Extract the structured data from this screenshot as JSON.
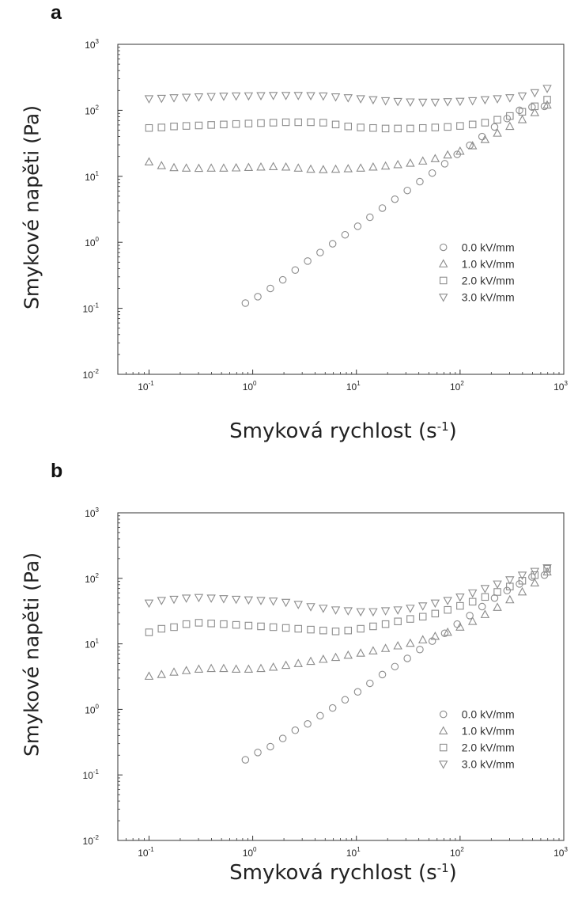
{
  "chart_data": [
    {
      "panel": "a",
      "type": "scatter",
      "x_scale": "log",
      "y_scale": "log",
      "xlim": [
        0.05,
        1000
      ],
      "ylim": [
        0.01,
        1000
      ],
      "x_ticks": [
        0.1,
        1,
        10,
        100,
        1000
      ],
      "y_ticks": [
        0.01,
        0.1,
        1,
        10,
        100,
        1000
      ],
      "ylabel": "Smykové napěti (Pa)",
      "xlabel_main": "Smyková rychlost (s",
      "xlabel_sup": "-1",
      "xlabel_end": ")",
      "legend_position": "lower-right",
      "marker_color": "#8c8c8c",
      "series": [
        {
          "name": "0.0 kV/mm",
          "marker": "circle",
          "x": [
            0.85,
            1.12,
            1.48,
            1.95,
            2.57,
            3.39,
            4.47,
            5.9,
            7.78,
            10.3,
            13.5,
            17.8,
            23.5,
            31.0,
            40.9,
            53.9,
            71.1,
            93.8,
            124,
            163,
            215,
            284,
            374,
            494,
            651
          ],
          "y": [
            0.12,
            0.15,
            0.2,
            0.27,
            0.38,
            0.52,
            0.7,
            0.95,
            1.3,
            1.75,
            2.4,
            3.3,
            4.5,
            6.1,
            8.3,
            11.2,
            15.5,
            21.5,
            29.5,
            40,
            56,
            75,
            100,
            112,
            115
          ]
        },
        {
          "name": "1.0 kV/mm",
          "marker": "triangle-up",
          "x": [
            0.1,
            0.132,
            0.174,
            0.229,
            0.302,
            0.398,
            0.525,
            0.692,
            0.912,
            1.2,
            1.58,
            2.09,
            2.75,
            3.63,
            4.79,
            6.31,
            8.32,
            11.0,
            14.5,
            19.1,
            25.1,
            33.1,
            43.7,
            57.5,
            75.9,
            100,
            132,
            174,
            229,
            302,
            398,
            525,
            692
          ],
          "y": [
            16.5,
            14.5,
            13.5,
            13.3,
            13.2,
            13.3,
            13.3,
            13.4,
            13.6,
            13.8,
            14,
            13.8,
            13.3,
            12.8,
            12.6,
            12.8,
            13,
            13.3,
            13.8,
            14.3,
            15,
            15.8,
            17,
            18.5,
            21,
            24,
            29,
            36,
            45,
            57,
            72,
            92,
            120
          ]
        },
        {
          "name": "2.0 kV/mm",
          "marker": "square",
          "x": [
            0.1,
            0.132,
            0.174,
            0.229,
            0.302,
            0.398,
            0.525,
            0.692,
            0.912,
            1.2,
            1.58,
            2.09,
            2.75,
            3.63,
            4.79,
            6.31,
            8.32,
            11.0,
            14.5,
            19.1,
            25.1,
            33.1,
            43.7,
            57.5,
            75.9,
            100,
            132,
            174,
            229,
            302,
            398,
            525,
            692
          ],
          "y": [
            54,
            55,
            57,
            58,
            59,
            60,
            61,
            62,
            63,
            64,
            65,
            66,
            66,
            66,
            65,
            61,
            57,
            55,
            54,
            53,
            53,
            53,
            54,
            55,
            56,
            58,
            61,
            65,
            72,
            82,
            95,
            115,
            145
          ]
        },
        {
          "name": "3.0 kV/mm",
          "marker": "triangle-down",
          "x": [
            0.1,
            0.132,
            0.174,
            0.229,
            0.302,
            0.398,
            0.525,
            0.692,
            0.912,
            1.2,
            1.58,
            2.09,
            2.75,
            3.63,
            4.79,
            6.31,
            8.32,
            11.0,
            14.5,
            19.1,
            25.1,
            33.1,
            43.7,
            57.5,
            75.9,
            100,
            132,
            174,
            229,
            302,
            398,
            525,
            692
          ],
          "y": [
            150,
            152,
            155,
            158,
            160,
            162,
            164,
            165,
            166,
            167,
            168,
            168,
            168,
            167,
            165,
            160,
            155,
            150,
            145,
            140,
            136,
            134,
            133,
            133,
            135,
            137,
            140,
            145,
            150,
            155,
            165,
            185,
            215
          ]
        }
      ]
    },
    {
      "panel": "b",
      "type": "scatter",
      "x_scale": "log",
      "y_scale": "log",
      "xlim": [
        0.05,
        1000
      ],
      "ylim": [
        0.01,
        1000
      ],
      "x_ticks": [
        0.1,
        1,
        10,
        100,
        1000
      ],
      "y_ticks": [
        0.01,
        0.1,
        1,
        10,
        100,
        1000
      ],
      "ylabel": "Smykové napěti (Pa)",
      "xlabel_main": "Smyková rychlost (s",
      "xlabel_sup": "-1",
      "xlabel_end": ")",
      "legend_position": "lower-right",
      "marker_color": "#8c8c8c",
      "series": [
        {
          "name": "0.0 kV/mm",
          "marker": "circle",
          "x": [
            0.85,
            1.12,
            1.48,
            1.95,
            2.57,
            3.39,
            4.47,
            5.9,
            7.78,
            10.3,
            13.5,
            17.8,
            23.5,
            31.0,
            40.9,
            53.9,
            71.1,
            93.8,
            124,
            163,
            215,
            284,
            374,
            494,
            651
          ],
          "y": [
            0.17,
            0.22,
            0.27,
            0.36,
            0.48,
            0.6,
            0.8,
            1.05,
            1.4,
            1.85,
            2.5,
            3.4,
            4.5,
            6,
            8.2,
            11,
            14.5,
            20,
            27,
            37,
            50,
            65,
            82,
            105,
            112
          ]
        },
        {
          "name": "1.0 kV/mm",
          "marker": "triangle-up",
          "x": [
            0.1,
            0.132,
            0.174,
            0.229,
            0.302,
            0.398,
            0.525,
            0.692,
            0.912,
            1.2,
            1.58,
            2.09,
            2.75,
            3.63,
            4.79,
            6.31,
            8.32,
            11.0,
            14.5,
            19.1,
            25.1,
            33.1,
            43.7,
            57.5,
            75.9,
            100,
            132,
            174,
            229,
            302,
            398,
            525,
            692
          ],
          "y": [
            3.2,
            3.4,
            3.7,
            3.9,
            4.1,
            4.2,
            4.2,
            4.1,
            4.1,
            4.2,
            4.4,
            4.7,
            5,
            5.4,
            5.8,
            6.2,
            6.7,
            7.2,
            7.8,
            8.5,
            9.3,
            10.2,
            11.5,
            13,
            15,
            18,
            22,
            28,
            36,
            47,
            62,
            85,
            125
          ]
        },
        {
          "name": "2.0 kV/mm",
          "marker": "square",
          "x": [
            0.1,
            0.132,
            0.174,
            0.229,
            0.302,
            0.398,
            0.525,
            0.692,
            0.912,
            1.2,
            1.58,
            2.09,
            2.75,
            3.63,
            4.79,
            6.31,
            8.32,
            11.0,
            14.5,
            19.1,
            25.1,
            33.1,
            43.7,
            57.5,
            75.9,
            100,
            132,
            174,
            229,
            302,
            398,
            525,
            692
          ],
          "y": [
            15,
            17,
            18,
            20,
            21,
            20.5,
            20,
            19.5,
            19,
            18.5,
            18,
            17.5,
            17,
            16.5,
            16,
            15.5,
            16,
            17,
            18.5,
            20,
            22,
            24,
            26,
            29,
            33,
            38,
            44,
            52,
            62,
            75,
            92,
            112,
            140
          ]
        },
        {
          "name": "3.0 kV/mm",
          "marker": "triangle-down",
          "x": [
            0.1,
            0.132,
            0.174,
            0.229,
            0.302,
            0.398,
            0.525,
            0.692,
            0.912,
            1.2,
            1.58,
            2.09,
            2.75,
            3.63,
            4.79,
            6.31,
            8.32,
            11.0,
            14.5,
            19.1,
            25.1,
            33.1,
            43.7,
            57.5,
            75.9,
            100,
            132,
            174,
            229,
            302,
            398,
            525,
            692
          ],
          "y": [
            42,
            46,
            48,
            50,
            51,
            50,
            49,
            48,
            47,
            46,
            45,
            43,
            40,
            37,
            35,
            33,
            32,
            31,
            31,
            32,
            33,
            35,
            38,
            42,
            46,
            52,
            60,
            70,
            82,
            95,
            112,
            128,
            145
          ]
        }
      ]
    }
  ],
  "panels": [
    {
      "letter": "a"
    },
    {
      "letter": "b"
    }
  ]
}
